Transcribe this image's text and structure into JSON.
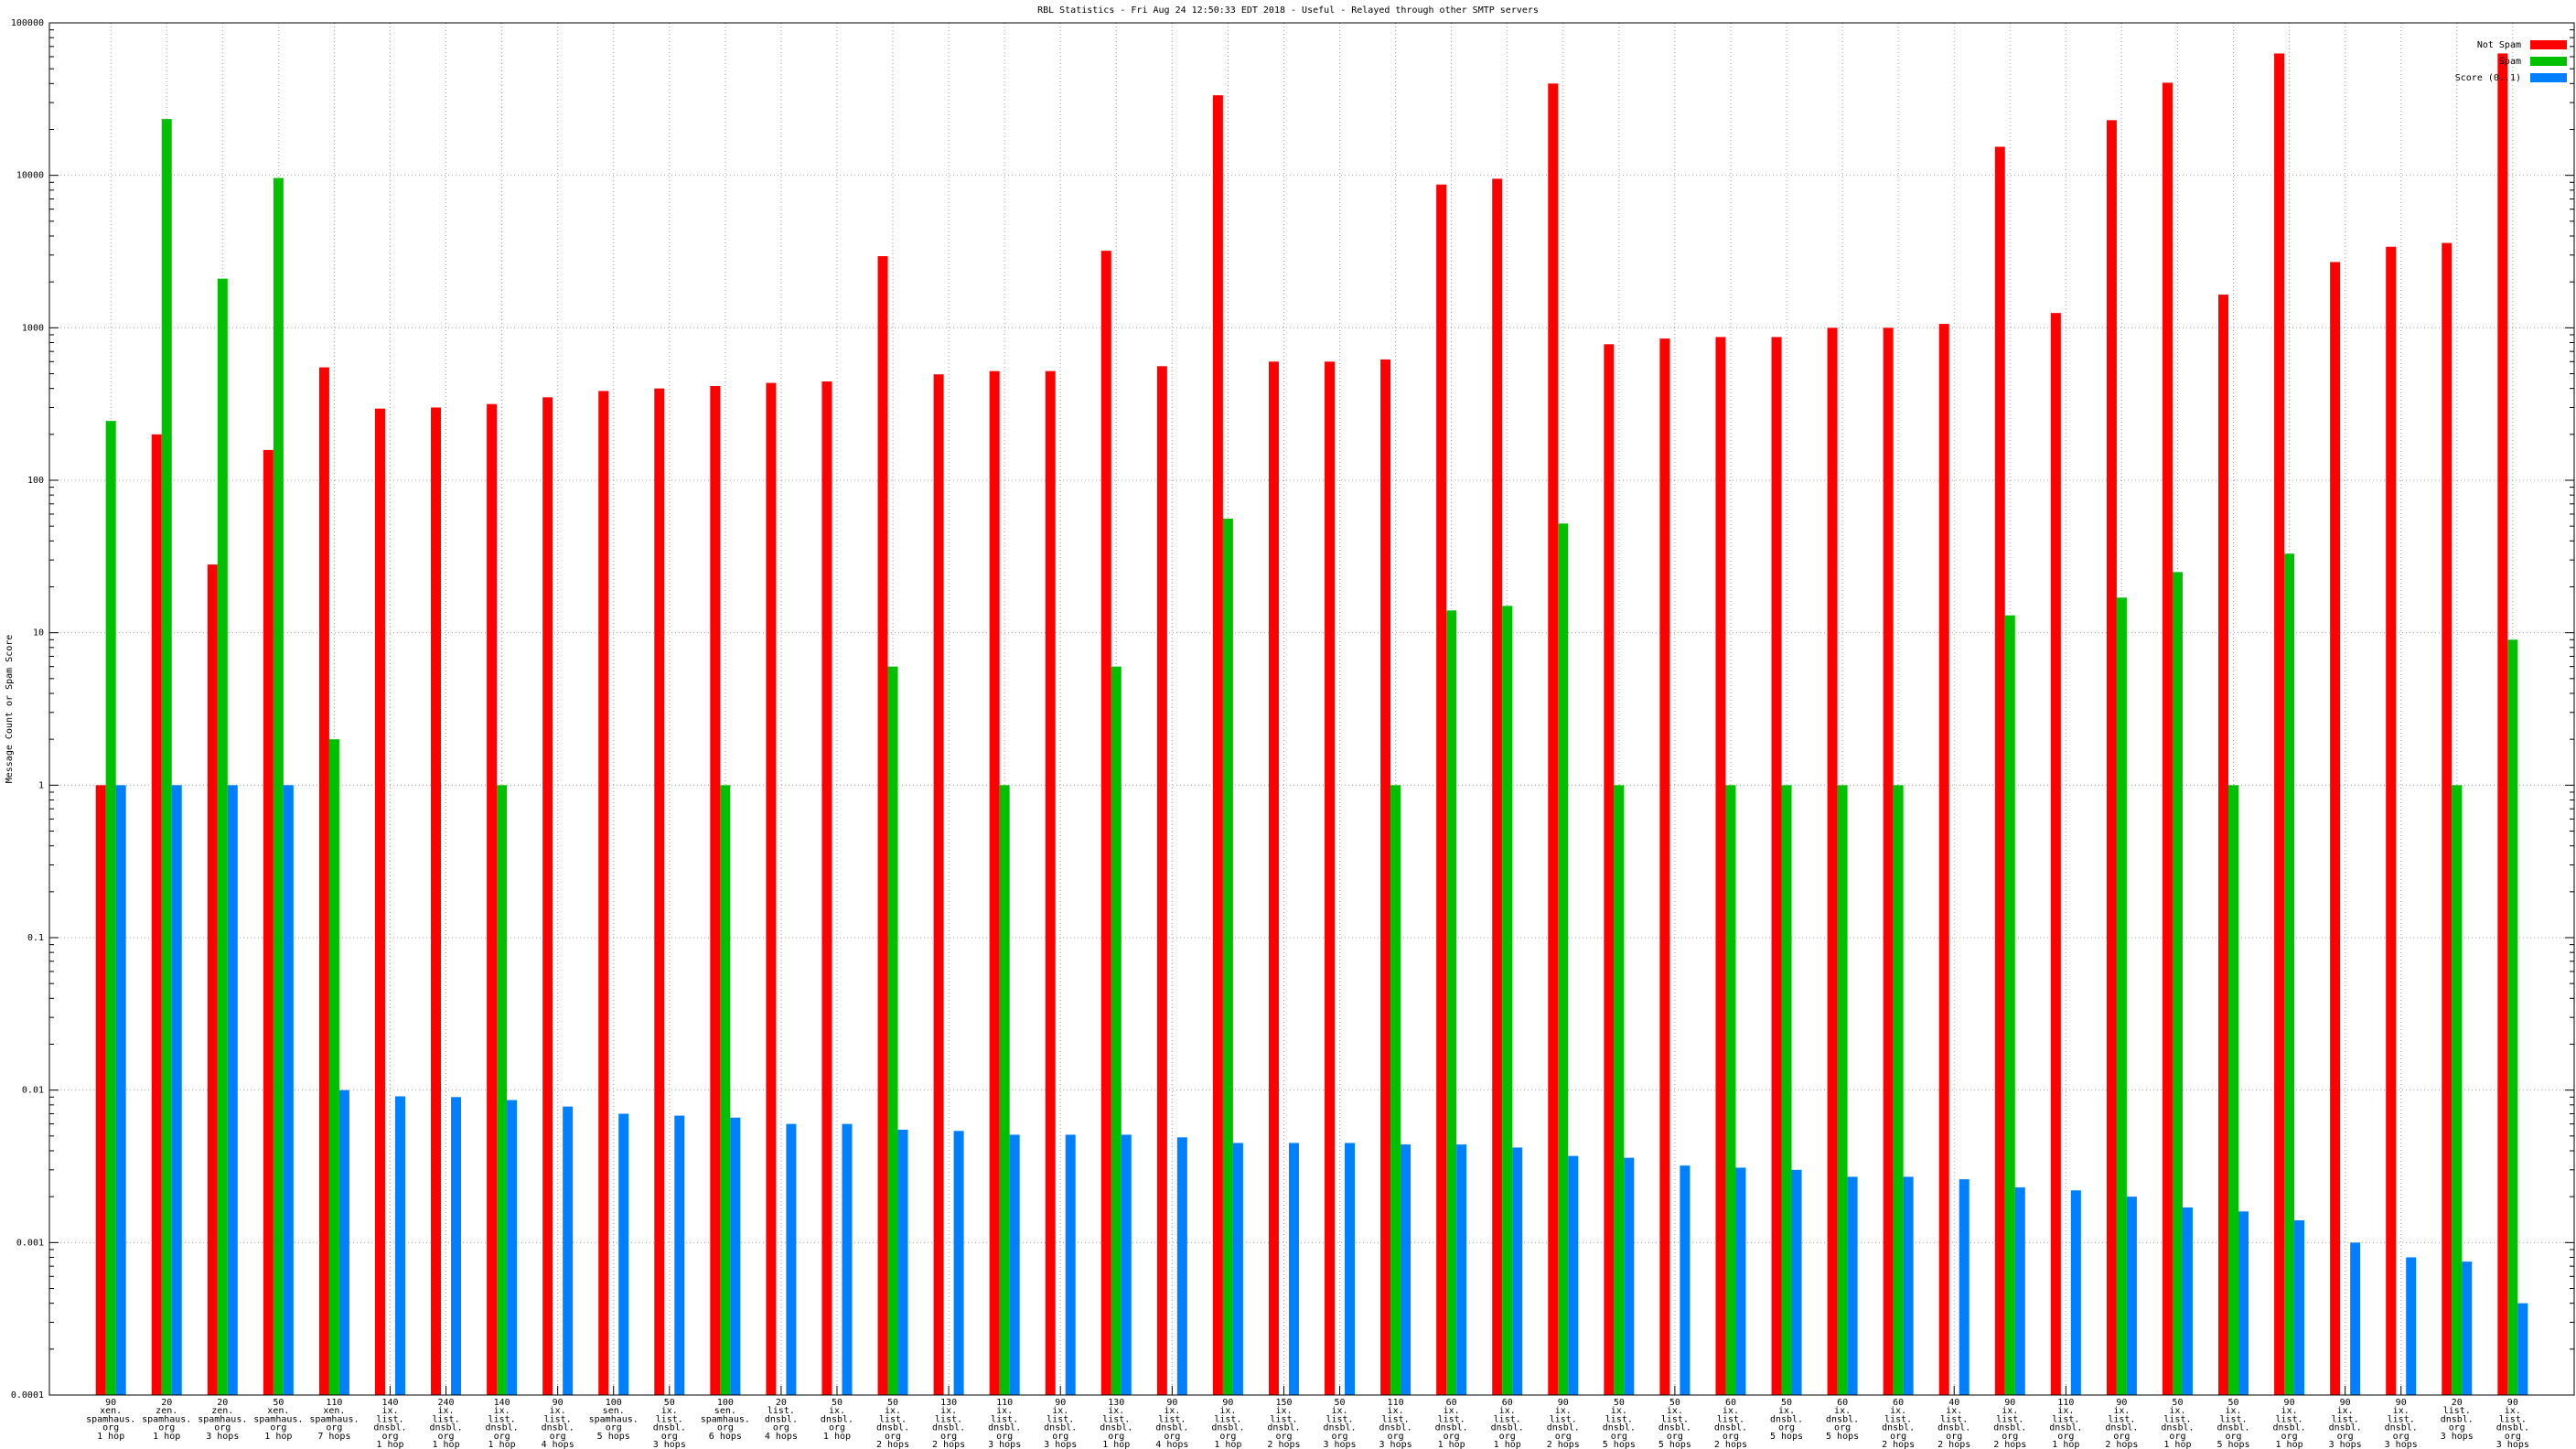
{
  "chart_data": {
    "type": "bar",
    "title": "RBL Statistics - Fri Aug 24 12:50:33 EDT 2018 - Useful - Relayed through other SMTP servers",
    "y_label": "Message Count or Spam Score",
    "log_scale": true,
    "grid": true,
    "legend": "top-right",
    "ylim": [
      0.0001,
      100000
    ],
    "yticks": [
      0.0001,
      0.001,
      0.01,
      0.1,
      1,
      10,
      100,
      1000,
      10000,
      100000
    ],
    "categories": [
      [
        "90",
        "xen.",
        "spamhaus.",
        "org",
        "1 hop"
      ],
      [
        "20",
        "zen.",
        "spamhaus.",
        "org",
        "1 hop"
      ],
      [
        "20",
        "zen.",
        "spamhaus.",
        "org",
        "3 hops"
      ],
      [
        "50",
        "xen.",
        "spamhaus.",
        "org",
        "1 hop"
      ],
      [
        "110",
        "xen.",
        "spamhaus.",
        "org",
        "7 hops"
      ],
      [
        "140",
        "ix.",
        "list.",
        "dnsbl.",
        "org",
        "1 hop"
      ],
      [
        "240",
        "ix.",
        "list.",
        "dnsbl.",
        "org",
        "1 hop"
      ],
      [
        "140",
        "ix.",
        "list.",
        "dnsbl.",
        "org",
        "1 hop"
      ],
      [
        "90",
        "ix.",
        "list.",
        "dnsbl.",
        "org",
        "4 hops"
      ],
      [
        "100",
        "sen.",
        "spamhaus.",
        "org",
        "5 hops"
      ],
      [
        "50",
        "ix.",
        "list.",
        "dnsbl.",
        "org",
        "3 hops"
      ],
      [
        "100",
        "sen.",
        "spamhaus.",
        "org",
        "6 hops"
      ],
      [
        "20",
        "list.",
        "dnsbl.",
        "org",
        "4 hops"
      ],
      [
        "50",
        "ix.",
        "dnsbl.",
        "org",
        "1 hop"
      ],
      [
        "50",
        "ix.",
        "list.",
        "dnsbl.",
        "org",
        "2 hops"
      ],
      [
        "130",
        "ix.",
        "list.",
        "dnsbl.",
        "org",
        "2 hops"
      ],
      [
        "110",
        "ix.",
        "list.",
        "dnsbl.",
        "org",
        "3 hops"
      ],
      [
        "90",
        "ix.",
        "list.",
        "dnsbl.",
        "org",
        "3 hops"
      ],
      [
        "130",
        "ix.",
        "list.",
        "dnsbl.",
        "org",
        "1 hop"
      ],
      [
        "90",
        "ix.",
        "list.",
        "dnsbl.",
        "org",
        "4 hops"
      ],
      [
        "90",
        "ix.",
        "list.",
        "dnsbl.",
        "org",
        "1 hop"
      ],
      [
        "150",
        "ix.",
        "list.",
        "dnsbl.",
        "org",
        "2 hops"
      ],
      [
        "50",
        "ix.",
        "list.",
        "dnsbl.",
        "org",
        "3 hops"
      ],
      [
        "110",
        "ix.",
        "list.",
        "dnsbl.",
        "org",
        "3 hops"
      ],
      [
        "60",
        "ix.",
        "list.",
        "dnsbl.",
        "org",
        "1 hop"
      ],
      [
        "60",
        "ix.",
        "list.",
        "dnsbl.",
        "org",
        "1 hop"
      ],
      [
        "90",
        "ix.",
        "list.",
        "dnsbl.",
        "org",
        "2 hops"
      ],
      [
        "50",
        "ix.",
        "list.",
        "dnsbl.",
        "org",
        "5 hops"
      ],
      [
        "50",
        "ix.",
        "list.",
        "dnsbl.",
        "org",
        "5 hops"
      ],
      [
        "60",
        "ix.",
        "list.",
        "dnsbl.",
        "org",
        "2 hops"
      ],
      [
        "50",
        "ix.",
        "dnsbl.",
        "org",
        "5 hops"
      ],
      [
        "60",
        "ix.",
        "dnsbl.",
        "org",
        "5 hops"
      ],
      [
        "60",
        "ix.",
        "list.",
        "dnsbl.",
        "org",
        "2 hops"
      ],
      [
        "40",
        "ix.",
        "list.",
        "dnsbl.",
        "org",
        "2 hops"
      ],
      [
        "90",
        "ix.",
        "list.",
        "dnsbl.",
        "org",
        "2 hops"
      ],
      [
        "110",
        "ix.",
        "list.",
        "dnsbl.",
        "org",
        "1 hop"
      ],
      [
        "90",
        "ix.",
        "list.",
        "dnsbl.",
        "org",
        "2 hops"
      ],
      [
        "50",
        "ix.",
        "list.",
        "dnsbl.",
        "org",
        "1 hop"
      ],
      [
        "50",
        "ix.",
        "list.",
        "dnsbl.",
        "org",
        "5 hops"
      ],
      [
        "90",
        "ix.",
        "list.",
        "dnsbl.",
        "org",
        "1 hop"
      ],
      [
        "90",
        "ix.",
        "list.",
        "dnsbl.",
        "org",
        "3 hops"
      ],
      [
        "90",
        "ix.",
        "list.",
        "dnsbl.",
        "org",
        "3 hops"
      ],
      [
        "20",
        "list.",
        "dnsbl.",
        "org",
        "3 hops"
      ],
      [
        "90",
        "ix.",
        "list.",
        "dnsbl.",
        "org",
        "3 hops"
      ]
    ],
    "series": [
      {
        "name": "Not Spam",
        "color": "#ff0000",
        "values": [
          1,
          200,
          28,
          158,
          550,
          295,
          300,
          316,
          350,
          385,
          400,
          415,
          435,
          445,
          2950,
          495,
          520,
          520,
          3200,
          560,
          33500,
          600,
          600,
          620,
          8700,
          9500,
          40000,
          780,
          850,
          870,
          870,
          1000,
          1000,
          1060,
          15400,
          1250,
          23000,
          40500,
          1650,
          63000,
          2700,
          3400,
          3600,
          63000
        ]
      },
      {
        "name": "Spam",
        "color": "#00c000",
        "values": [
          245,
          23400,
          2100,
          9600,
          2,
          null,
          null,
          1,
          null,
          null,
          null,
          1,
          null,
          null,
          6,
          null,
          1,
          null,
          6,
          null,
          56,
          null,
          null,
          1,
          14,
          15,
          52,
          1,
          null,
          1,
          1,
          1,
          1,
          null,
          13,
          null,
          17,
          25,
          1,
          33,
          null,
          null,
          1,
          9
        ]
      },
      {
        "name": "Score (0..1)",
        "color": "#0080ff",
        "values": [
          1,
          1,
          1,
          1,
          0.01,
          0.0091,
          0.009,
          0.0086,
          0.0078,
          0.007,
          0.0068,
          0.0066,
          0.006,
          0.006,
          0.0055,
          0.0054,
          0.0051,
          0.0051,
          0.0051,
          0.0049,
          0.0045,
          0.0045,
          0.0045,
          0.0044,
          0.0044,
          0.0042,
          0.0037,
          0.0036,
          0.0032,
          0.0031,
          0.003,
          0.0027,
          0.0027,
          0.0026,
          0.0023,
          0.0022,
          0.002,
          0.0017,
          0.0016,
          0.0014,
          0.001,
          0.0008,
          0.00075,
          0.0004
        ]
      }
    ]
  }
}
